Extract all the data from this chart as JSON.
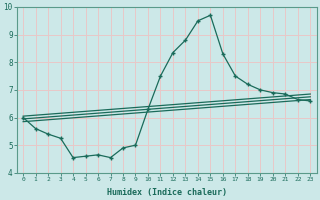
{
  "title": "",
  "xlabel": "Humidex (Indice chaleur)",
  "bg_color": "#cce8e8",
  "grid_color": "#e8c8c8",
  "line_color": "#1a6b5a",
  "xlim": [
    -0.5,
    23.5
  ],
  "ylim": [
    4,
    10
  ],
  "xticks": [
    0,
    1,
    2,
    3,
    4,
    5,
    6,
    7,
    8,
    9,
    10,
    11,
    12,
    13,
    14,
    15,
    16,
    17,
    18,
    19,
    20,
    21,
    22,
    23
  ],
  "yticks": [
    4,
    5,
    6,
    7,
    8,
    9,
    10
  ],
  "series1_x": [
    0,
    1,
    2,
    3,
    4,
    5,
    6,
    7,
    8,
    9,
    10,
    11,
    12,
    13,
    14,
    15,
    16,
    17,
    18,
    19,
    20,
    21,
    22,
    23
  ],
  "series1_y": [
    6.0,
    5.6,
    5.4,
    5.25,
    4.55,
    4.6,
    4.65,
    4.55,
    4.9,
    5.0,
    6.3,
    7.5,
    8.35,
    8.8,
    9.5,
    9.7,
    8.3,
    7.5,
    7.2,
    7.0,
    6.9,
    6.85,
    6.65,
    6.6
  ],
  "series2_x": [
    0,
    23
  ],
  "series2_y": [
    5.85,
    6.65
  ],
  "series3_x": [
    0,
    23
  ],
  "series3_y": [
    5.95,
    6.75
  ],
  "series4_x": [
    0,
    23
  ],
  "series4_y": [
    6.05,
    6.85
  ]
}
